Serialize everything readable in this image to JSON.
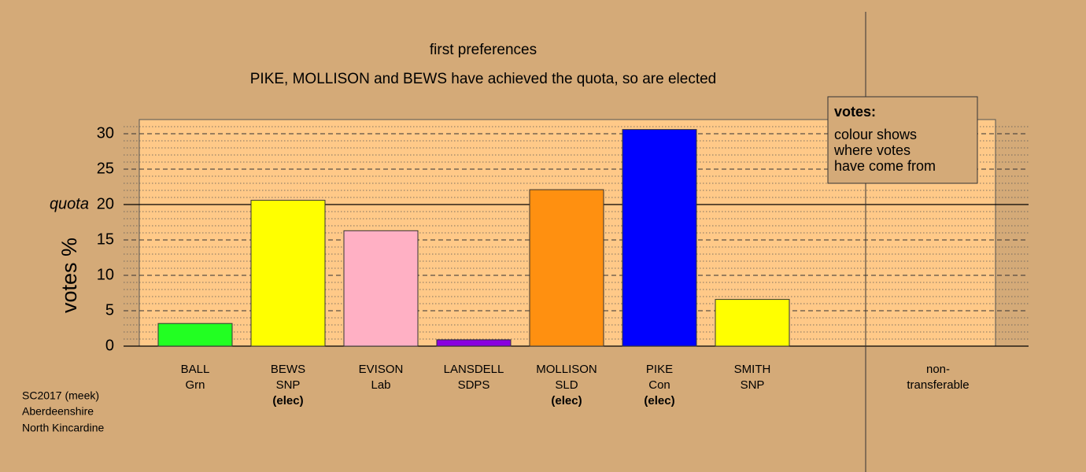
{
  "chart_data": {
    "type": "bar",
    "title": "first preferences",
    "subtitle": "PIKE, MOLLISON and BEWS have achieved the quota, so are elected",
    "y_label": "votes %",
    "categories": [
      "BALL",
      "BEWS",
      "EVISON",
      "LANSDELL",
      "MOLLISON",
      "PIKE",
      "SMITH",
      "non-"
    ],
    "parties": [
      "Grn",
      "SNP",
      "Lab",
      "SDPS",
      "SLD",
      "Con",
      "SNP",
      "transferable"
    ],
    "status": [
      null,
      "(elec)",
      null,
      null,
      "(elec)",
      "(elec)",
      null,
      null
    ],
    "values": [
      3.2,
      20.6,
      16.3,
      0.9,
      22.1,
      30.6,
      6.6,
      0
    ],
    "colors": [
      "#22ff22",
      "#ffff00",
      "#ffb0c4",
      "#8a00e0",
      "#ff9010",
      "#0000ff",
      "#ffff00",
      "#ffc988"
    ],
    "ylim": [
      0,
      32
    ],
    "yticks": [
      0,
      5,
      10,
      15,
      20,
      25,
      30
    ],
    "minor_yticks": [
      1,
      2,
      3,
      4,
      6,
      7,
      8,
      9,
      11,
      12,
      13,
      14,
      16,
      17,
      18,
      19,
      21,
      22,
      23,
      24,
      26,
      27,
      28,
      29,
      31
    ],
    "quota": {
      "value": 20,
      "label": "quota"
    },
    "legend": {
      "title": "votes:",
      "lines": [
        "colour shows",
        "where votes",
        "have come from"
      ]
    },
    "footnote": [
      "SC2017 (meek)",
      "Aberdeenshire",
      "North Kincardine"
    ],
    "grid": true
  }
}
